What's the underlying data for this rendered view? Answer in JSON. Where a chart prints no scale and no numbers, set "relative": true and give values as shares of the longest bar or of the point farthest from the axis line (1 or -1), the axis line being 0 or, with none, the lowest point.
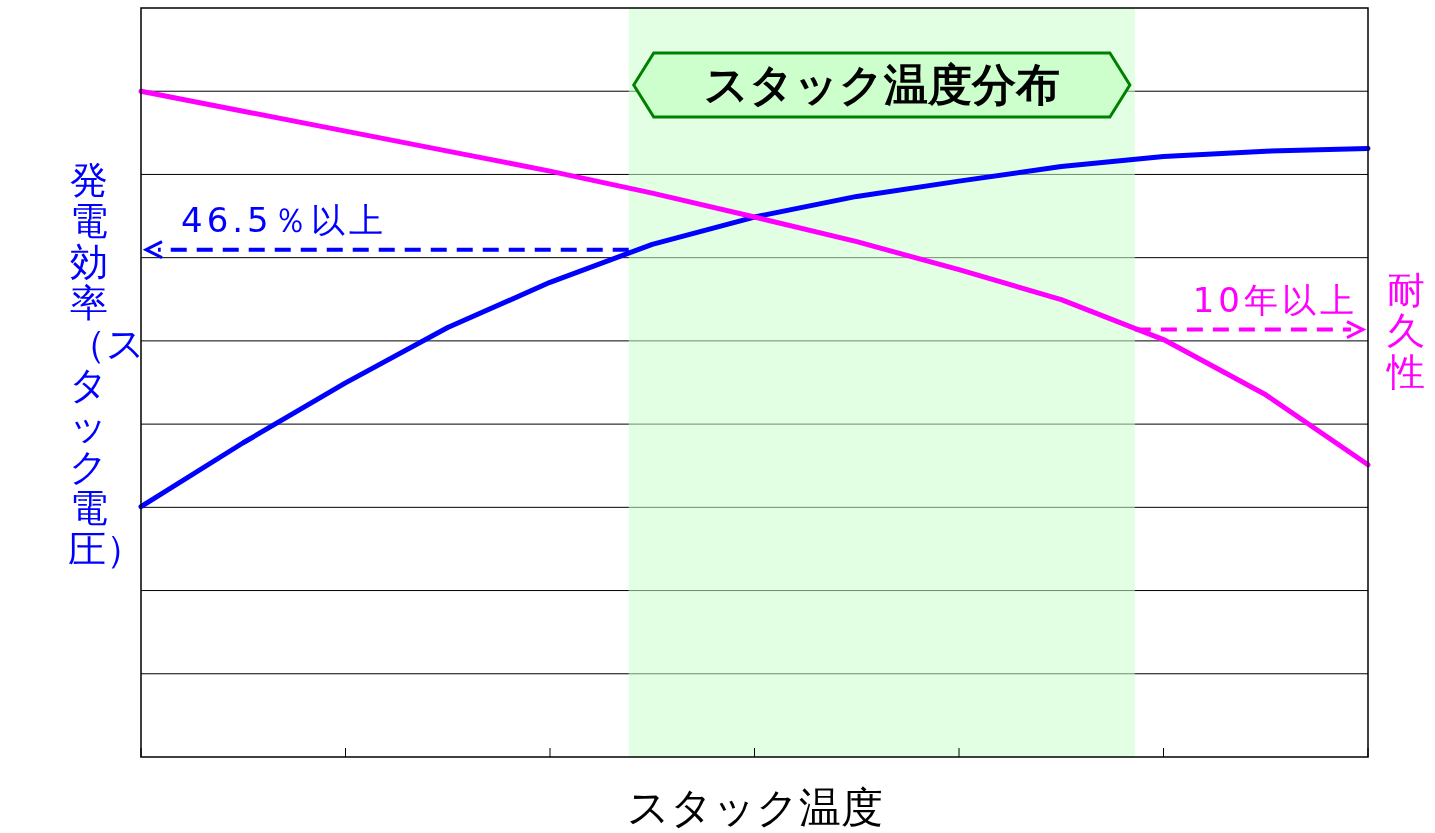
{
  "chart_data": {
    "type": "line",
    "relative": true,
    "categories": [
      null,
      null,
      null,
      null,
      null,
      null,
      null,
      null,
      null,
      null,
      null,
      null,
      null
    ],
    "grid": "y",
    "xlabel": "スタック温度",
    "ylabel": "発電効率（スタック電圧）",
    "y2label": "耐久性",
    "series": [
      {
        "color": "#0000ff",
        "values": [
          0.376,
          0.472,
          0.562,
          0.645,
          0.713,
          0.77,
          0.811,
          0.842,
          0.865,
          0.887,
          0.902,
          0.91,
          0.914
        ]
      },
      {
        "color": "#ff00ff",
        "values": [
          1,
          0.97,
          0.94,
          0.91,
          0.88,
          0.847,
          0.811,
          0.774,
          0.732,
          0.687,
          0.627,
          0.544,
          0.439
        ]
      }
    ],
    "annotations": [
      "スタック温度分布"
    ],
    "ref_lines": [
      {
        "axis": "y",
        "value": 0.762,
        "label": "46.5％以上",
        "color": "#0000ff",
        "line_style": "dashed"
      },
      {
        "axis": "y",
        "value": 0.642,
        "label": "10年以上",
        "color": "#ff00ff",
        "line_style": "dashed"
      }
    ],
    "line_style": "solid"
  }
}
